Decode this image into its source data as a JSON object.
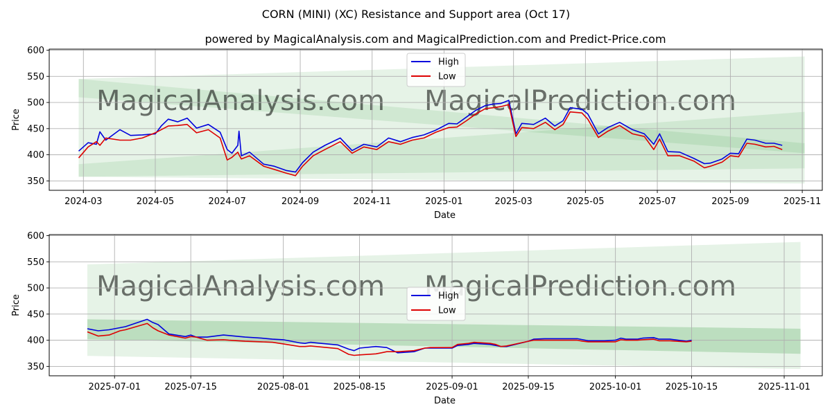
{
  "page": {
    "title": "CORN (MINI) (XC) Resistance and Support area (Oct 17)",
    "subtitle": "powered by MagicalAnalysis.com and MagicalPrediction.com and Predict-Price.com",
    "watermarks": [
      "MagicalAnalysis.com",
      "MagicalPrediction.com"
    ]
  },
  "colors": {
    "high": "#0000dd",
    "low": "#dd0000",
    "band": "#2e9b3c",
    "grid": "#b0b0b0",
    "watermark": "#d0d0d0"
  },
  "chart_data": [
    {
      "type": "line",
      "name": "full-history",
      "xlabel": "Date",
      "ylabel": "Price",
      "xlim": [
        "2024-02-01",
        "2025-11-18"
      ],
      "ylim": [
        332,
        602
      ],
      "x_ticks": [
        {
          "date": "2024-03-01",
          "label": "2024-03"
        },
        {
          "date": "2024-05-01",
          "label": "2024-05"
        },
        {
          "date": "2024-07-01",
          "label": "2024-07"
        },
        {
          "date": "2024-09-01",
          "label": "2024-09"
        },
        {
          "date": "2024-11-01",
          "label": "2024-11"
        },
        {
          "date": "2025-01-01",
          "label": "2025-01"
        },
        {
          "date": "2025-03-01",
          "label": "2025-03"
        },
        {
          "date": "2025-05-01",
          "label": "2025-05"
        },
        {
          "date": "2025-07-01",
          "label": "2025-07"
        },
        {
          "date": "2025-09-01",
          "label": "2025-09"
        },
        {
          "date": "2025-11-01",
          "label": "2025-11"
        }
      ],
      "y_ticks": [
        350,
        400,
        450,
        500,
        550,
        600
      ],
      "legend": {
        "position": "upper-center",
        "entries": [
          "High",
          "Low"
        ]
      },
      "bands": [
        {
          "name": "outer",
          "x": [
            "2024-02-26",
            "2025-11-03"
          ],
          "upper": [
            545,
            588
          ],
          "lower": [
            358,
            345
          ]
        },
        {
          "name": "resistance",
          "x": [
            "2024-02-26",
            "2025-11-03"
          ],
          "upper": [
            545,
            422
          ],
          "lower": [
            510,
            403
          ]
        },
        {
          "name": "support",
          "x": [
            "2024-02-26",
            "2025-11-03"
          ],
          "upper": [
            382,
            482
          ],
          "lower": [
            358,
            374
          ]
        }
      ],
      "series": [
        {
          "name": "High",
          "x": [
            "2024-02-26",
            "2024-03-05",
            "2024-03-12",
            "2024-03-15",
            "2024-03-20",
            "2024-04-01",
            "2024-04-10",
            "2024-04-20",
            "2024-05-01",
            "2024-05-06",
            "2024-05-12",
            "2024-05-20",
            "2024-05-28",
            "2024-06-05",
            "2024-06-15",
            "2024-06-25",
            "2024-07-01",
            "2024-07-05",
            "2024-07-10",
            "2024-07-11",
            "2024-07-13",
            "2024-07-20",
            "2024-08-01",
            "2024-08-10",
            "2024-08-20",
            "2024-08-28",
            "2024-09-03",
            "2024-09-12",
            "2024-09-22",
            "2024-10-05",
            "2024-10-15",
            "2024-10-25",
            "2024-11-05",
            "2024-11-15",
            "2024-11-25",
            "2024-12-05",
            "2024-12-15",
            "2024-12-25",
            "2025-01-05",
            "2025-01-12",
            "2025-01-20",
            "2025-01-28",
            "2025-02-05",
            "2025-02-12",
            "2025-02-18",
            "2025-02-25",
            "2025-03-03",
            "2025-03-08",
            "2025-03-18",
            "2025-03-28",
            "2025-04-05",
            "2025-04-12",
            "2025-04-18",
            "2025-04-28",
            "2025-05-03",
            "2025-05-12",
            "2025-05-20",
            "2025-05-30",
            "2025-06-10",
            "2025-06-20",
            "2025-06-28",
            "2025-07-03",
            "2025-07-10",
            "2025-07-20",
            "2025-08-01",
            "2025-08-10",
            "2025-08-15",
            "2025-08-25",
            "2025-09-01",
            "2025-09-08",
            "2025-09-15",
            "2025-09-22",
            "2025-10-01",
            "2025-10-08",
            "2025-10-15"
          ],
          "values": [
            407,
            423,
            420,
            444,
            428,
            448,
            437,
            438,
            440,
            455,
            468,
            463,
            470,
            451,
            458,
            443,
            410,
            403,
            418,
            445,
            398,
            405,
            382,
            378,
            370,
            367,
            385,
            405,
            418,
            432,
            408,
            420,
            415,
            432,
            425,
            433,
            438,
            447,
            460,
            459,
            472,
            485,
            494,
            497,
            498,
            504,
            440,
            460,
            458,
            470,
            455,
            465,
            490,
            487,
            478,
            440,
            452,
            462,
            448,
            440,
            420,
            440,
            406,
            405,
            393,
            383,
            384,
            392,
            403,
            402,
            430,
            428,
            422,
            422,
            418
          ],
          "color": "#0000dd"
        },
        {
          "name": "Low",
          "x": [
            "2024-02-26",
            "2024-03-05",
            "2024-03-12",
            "2024-03-15",
            "2024-03-20",
            "2024-04-01",
            "2024-04-10",
            "2024-04-20",
            "2024-05-01",
            "2024-05-06",
            "2024-05-12",
            "2024-05-20",
            "2024-05-28",
            "2024-06-05",
            "2024-06-15",
            "2024-06-25",
            "2024-07-01",
            "2024-07-05",
            "2024-07-10",
            "2024-07-11",
            "2024-07-13",
            "2024-07-20",
            "2024-08-01",
            "2024-08-10",
            "2024-08-20",
            "2024-08-28",
            "2024-09-03",
            "2024-09-12",
            "2024-09-22",
            "2024-10-05",
            "2024-10-15",
            "2024-10-25",
            "2024-11-05",
            "2024-11-15",
            "2024-11-25",
            "2024-12-05",
            "2024-12-15",
            "2024-12-25",
            "2025-01-05",
            "2025-01-12",
            "2025-01-20",
            "2025-01-28",
            "2025-02-05",
            "2025-02-12",
            "2025-02-18",
            "2025-02-25",
            "2025-03-03",
            "2025-03-08",
            "2025-03-18",
            "2025-03-28",
            "2025-04-05",
            "2025-04-12",
            "2025-04-18",
            "2025-04-28",
            "2025-05-03",
            "2025-05-12",
            "2025-05-20",
            "2025-05-30",
            "2025-06-10",
            "2025-06-20",
            "2025-06-28",
            "2025-07-03",
            "2025-07-10",
            "2025-07-20",
            "2025-08-01",
            "2025-08-10",
            "2025-08-15",
            "2025-08-25",
            "2025-09-01",
            "2025-09-08",
            "2025-09-15",
            "2025-09-22",
            "2025-10-01",
            "2025-10-08",
            "2025-10-15"
          ],
          "values": [
            394,
            415,
            425,
            418,
            432,
            428,
            428,
            432,
            442,
            448,
            455,
            456,
            458,
            442,
            448,
            432,
            390,
            395,
            405,
            400,
            392,
            398,
            378,
            372,
            365,
            360,
            378,
            398,
            410,
            425,
            403,
            415,
            410,
            425,
            420,
            428,
            432,
            443,
            452,
            453,
            465,
            478,
            488,
            490,
            492,
            496,
            435,
            452,
            450,
            462,
            448,
            458,
            482,
            480,
            468,
            433,
            445,
            456,
            440,
            435,
            410,
            430,
            398,
            398,
            388,
            375,
            378,
            386,
            398,
            396,
            422,
            420,
            415,
            416,
            410
          ],
          "color": "#dd0000"
        }
      ]
    },
    {
      "type": "line",
      "name": "recent-zoom",
      "xlabel": "Date",
      "ylabel": "Price",
      "xlim": [
        "2025-06-19",
        "2025-11-08"
      ],
      "ylim": [
        332,
        602
      ],
      "x_ticks": [
        {
          "date": "2025-07-01",
          "label": "2025-07-01"
        },
        {
          "date": "2025-07-15",
          "label": "2025-07-15"
        },
        {
          "date": "2025-08-01",
          "label": "2025-08-01"
        },
        {
          "date": "2025-08-15",
          "label": "2025-08-15"
        },
        {
          "date": "2025-09-01",
          "label": "2025-09-01"
        },
        {
          "date": "2025-09-15",
          "label": "2025-09-15"
        },
        {
          "date": "2025-10-01",
          "label": "2025-10-01"
        },
        {
          "date": "2025-10-15",
          "label": "2025-10-15"
        },
        {
          "date": "2025-11-01",
          "label": "2025-11-01"
        }
      ],
      "y_ticks": [
        350,
        400,
        450,
        500,
        550,
        600
      ],
      "legend": {
        "position": "center",
        "entries": [
          "High",
          "Low"
        ]
      },
      "bands": [
        {
          "name": "outer",
          "x": [
            "2025-06-26",
            "2025-11-04"
          ],
          "upper": [
            545,
            588
          ],
          "lower": [
            370,
            345
          ]
        },
        {
          "name": "resistance",
          "x": [
            "2025-06-26",
            "2025-11-04"
          ],
          "upper": [
            440,
            422
          ],
          "lower": [
            402,
            374
          ]
        },
        {
          "name": "support",
          "x": [
            "2025-06-26",
            "2025-11-04"
          ],
          "upper": [
            440,
            422
          ],
          "lower": [
            402,
            374
          ]
        }
      ],
      "series": [
        {
          "name": "High",
          "x": [
            "2025-06-26",
            "2025-06-28",
            "2025-06-30",
            "2025-07-02",
            "2025-07-03",
            "2025-07-07",
            "2025-07-08",
            "2025-07-09",
            "2025-07-11",
            "2025-07-14",
            "2025-07-15",
            "2025-07-16",
            "2025-07-18",
            "2025-07-21",
            "2025-07-22",
            "2025-07-25",
            "2025-07-28",
            "2025-07-30",
            "2025-08-01",
            "2025-08-04",
            "2025-08-05",
            "2025-08-06",
            "2025-08-07",
            "2025-08-09",
            "2025-08-11",
            "2025-08-13",
            "2025-08-14",
            "2025-08-15",
            "2025-08-18",
            "2025-08-19",
            "2025-08-20",
            "2025-08-22",
            "2025-08-25",
            "2025-08-27",
            "2025-08-28",
            "2025-08-29",
            "2025-09-01",
            "2025-09-02",
            "2025-09-04",
            "2025-09-05",
            "2025-09-08",
            "2025-09-09",
            "2025-09-10",
            "2025-09-11",
            "2025-09-15",
            "2025-09-16",
            "2025-09-18",
            "2025-09-19",
            "2025-09-22",
            "2025-09-24",
            "2025-09-25",
            "2025-09-26",
            "2025-09-29",
            "2025-10-01",
            "2025-10-02",
            "2025-10-03",
            "2025-10-05",
            "2025-10-06",
            "2025-10-08",
            "2025-10-09",
            "2025-10-11",
            "2025-10-14",
            "2025-10-15"
          ],
          "values": [
            422,
            418,
            420,
            424,
            426,
            440,
            434,
            430,
            412,
            407,
            410,
            406,
            406,
            410,
            409,
            406,
            404,
            402,
            401,
            395,
            394,
            396,
            395,
            393,
            391,
            383,
            380,
            385,
            388,
            387,
            386,
            376,
            378,
            385,
            385,
            385,
            385,
            390,
            392,
            394,
            392,
            390,
            388,
            388,
            398,
            402,
            403,
            403,
            403,
            403,
            401,
            399,
            399,
            400,
            404,
            402,
            402,
            404,
            405,
            402,
            402,
            398,
            400
          ],
          "color": "#0000dd"
        },
        {
          "name": "Low",
          "x": [
            "2025-06-26",
            "2025-06-28",
            "2025-06-30",
            "2025-07-02",
            "2025-07-03",
            "2025-07-07",
            "2025-07-08",
            "2025-07-09",
            "2025-07-11",
            "2025-07-14",
            "2025-07-15",
            "2025-07-16",
            "2025-07-18",
            "2025-07-21",
            "2025-07-22",
            "2025-07-25",
            "2025-07-28",
            "2025-07-30",
            "2025-08-01",
            "2025-08-04",
            "2025-08-05",
            "2025-08-06",
            "2025-08-07",
            "2025-08-09",
            "2025-08-11",
            "2025-08-13",
            "2025-08-14",
            "2025-08-15",
            "2025-08-18",
            "2025-08-19",
            "2025-08-20",
            "2025-08-22",
            "2025-08-25",
            "2025-08-27",
            "2025-08-28",
            "2025-08-29",
            "2025-09-01",
            "2025-09-02",
            "2025-09-04",
            "2025-09-05",
            "2025-09-08",
            "2025-09-09",
            "2025-09-10",
            "2025-09-11",
            "2025-09-15",
            "2025-09-16",
            "2025-09-18",
            "2025-09-19",
            "2025-09-22",
            "2025-09-24",
            "2025-09-25",
            "2025-09-26",
            "2025-09-29",
            "2025-10-01",
            "2025-10-02",
            "2025-10-03",
            "2025-10-05",
            "2025-10-06",
            "2025-10-08",
            "2025-10-09",
            "2025-10-11",
            "2025-10-14",
            "2025-10-15"
          ],
          "values": [
            416,
            408,
            410,
            418,
            420,
            432,
            424,
            418,
            410,
            404,
            407,
            406,
            400,
            401,
            400,
            398,
            397,
            396,
            393,
            388,
            388,
            389,
            388,
            386,
            384,
            373,
            371,
            372,
            374,
            376,
            378,
            378,
            380,
            385,
            386,
            386,
            386,
            392,
            394,
            396,
            394,
            392,
            388,
            389,
            398,
            400,
            400,
            400,
            400,
            400,
            398,
            397,
            397,
            397,
            401,
            400,
            400,
            401,
            402,
            399,
            399,
            397,
            398
          ],
          "color": "#dd0000"
        }
      ]
    }
  ]
}
